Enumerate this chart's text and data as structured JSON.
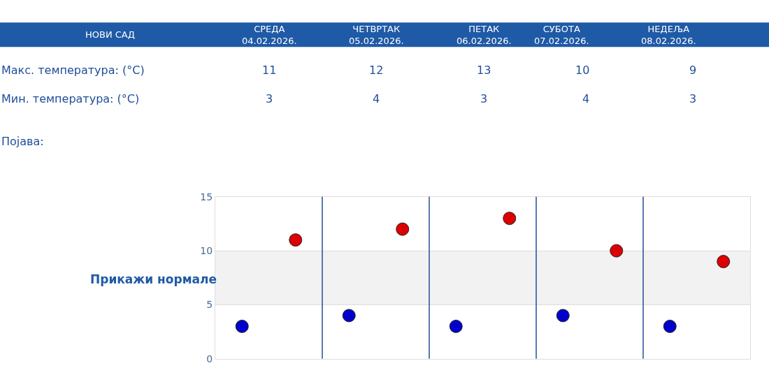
{
  "chart_data": [
    {
      "type": "other",
      "title": "НОВИ САД",
      "categories": [
        "СРЕДА\n04.02.2026.",
        "ЧЕТВРТАК\n05.02.2026.",
        "ПЕТАК\n06.02.2026.",
        "СУБОТА\n07.02.2026.",
        "НЕДЕЉА\n08.02.2026."
      ],
      "series": [
        {
          "name": "Макс. температура: (°C)",
          "values": [
            11,
            12,
            13,
            10,
            9
          ]
        },
        {
          "name": "Мин. температура: (°C)",
          "values": [
            3,
            4,
            3,
            4,
            3
          ]
        }
      ],
      "annotations": [
        "Појава:"
      ],
      "data_labels": true
    },
    {
      "type": "scatter",
      "categories": [
        null,
        null,
        null,
        null,
        null
      ],
      "series": [
        {
          "color": "#0000cc",
          "values": [
            3,
            4,
            3,
            4,
            3
          ]
        },
        {
          "color": "#dd0000",
          "values": [
            11,
            12,
            13,
            10,
            9
          ]
        }
      ],
      "ylim": [
        0,
        15
      ],
      "yticks": [
        0,
        5,
        10,
        15
      ],
      "grid": "y",
      "marker": "circle",
      "legend": false,
      "bands": [
        {
          "axis": "y",
          "from": 5,
          "to": 10,
          "color": "#f2f2f2"
        }
      ],
      "annotations": [
        "Прикажи нормале"
      ]
    }
  ]
}
